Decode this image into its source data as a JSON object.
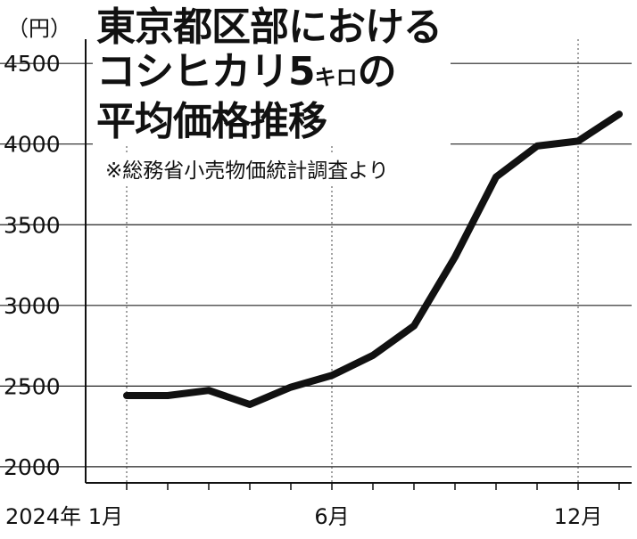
{
  "chart_data": {
    "type": "line",
    "title_lines": [
      "東京都区部における",
      "コシヒカリ5",
      "平均価格推移"
    ],
    "title_unit_small": "キロ",
    "title_suffix": "の",
    "source": "※総務省小売物価統計調査より",
    "ylabel_unit": "（円）",
    "ylim": [
      1900,
      4650
    ],
    "yticks": [
      2000,
      2500,
      3000,
      3500,
      4000,
      4500
    ],
    "x_months": 13,
    "x_labels": [
      {
        "index": 0,
        "text": "2024年 1月"
      },
      {
        "index": 5,
        "text": "6月"
      },
      {
        "index": 11,
        "text": "12月"
      }
    ],
    "dotted_month_indices": [
      0,
      5,
      11
    ],
    "grid": true,
    "series": [
      {
        "values": [
          2441,
          2441,
          2473,
          2386,
          2493,
          2566,
          2690,
          2873,
          3300,
          3796,
          3988,
          4018,
          4185
        ]
      }
    ],
    "line_color": "#111111"
  }
}
